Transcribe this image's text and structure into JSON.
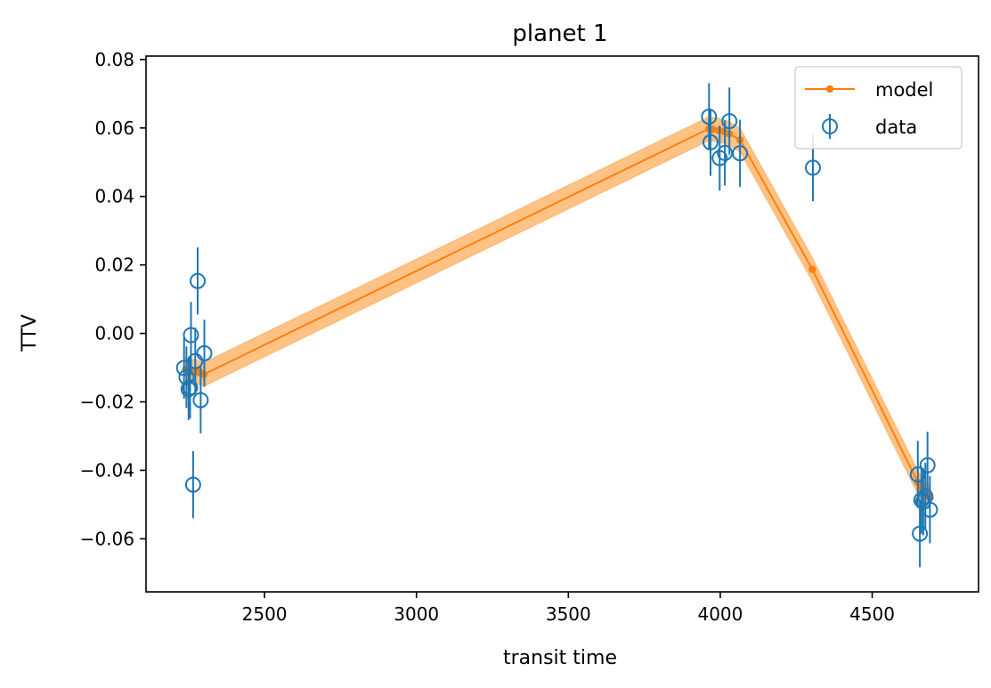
{
  "chart_data": {
    "type": "scatter",
    "title": "planet 1",
    "xlabel": "transit time",
    "ylabel": "TTV",
    "xlim": [
      2110,
      4850
    ],
    "ylim": [
      -0.0755,
      0.081
    ],
    "xticks": [
      2500,
      3000,
      3500,
      4000,
      4500
    ],
    "xtick_labels": [
      "2500",
      "3000",
      "3500",
      "4000",
      "4500"
    ],
    "yticks": [
      -0.06,
      -0.04,
      -0.02,
      0.0,
      0.02,
      0.04,
      0.06,
      0.08
    ],
    "ytick_labels": [
      "−0.06",
      "−0.04",
      "−0.02",
      "0.00",
      "0.02",
      "0.04",
      "0.06",
      "0.08"
    ],
    "grid": false,
    "legend_position": "top-right",
    "colors": {
      "model": "#ff7f0e",
      "data": "#1f77b4",
      "band": "#ffbb78"
    },
    "series": [
      {
        "name": "model",
        "kind": "line",
        "band_halfwidth": 0.0035,
        "x": [
          2240,
          2248,
          2255,
          2262,
          2270,
          2280,
          2290,
          2300,
          3963,
          3975,
          3995,
          4012,
          4030,
          4065,
          4303,
          4650,
          4660,
          4668,
          4675,
          4682,
          4690
        ],
        "y": [
          -0.0105,
          -0.011,
          -0.0108,
          -0.0112,
          -0.011,
          -0.0113,
          -0.0116,
          -0.012,
          0.0598,
          0.0596,
          0.0593,
          0.059,
          0.0583,
          0.0565,
          0.0187,
          -0.0435,
          -0.045,
          -0.0462,
          -0.0468,
          -0.0475,
          -0.048
        ]
      },
      {
        "name": "data",
        "kind": "errorbar",
        "points": [
          {
            "x": 2235,
            "y": -0.0101,
            "err": 0.009
          },
          {
            "x": 2243,
            "y": -0.0128,
            "err": 0.009
          },
          {
            "x": 2250,
            "y": -0.0163,
            "err": 0.009
          },
          {
            "x": 2255,
            "y": -0.0158,
            "err": 0.009
          },
          {
            "x": 2258,
            "y": -0.0005,
            "err": 0.0097
          },
          {
            "x": 2265,
            "y": -0.0442,
            "err": 0.0098
          },
          {
            "x": 2272,
            "y": -0.0081,
            "err": 0.0098
          },
          {
            "x": 2280,
            "y": 0.0153,
            "err": 0.0098
          },
          {
            "x": 2290,
            "y": -0.0195,
            "err": 0.0097
          },
          {
            "x": 2302,
            "y": -0.0058,
            "err": 0.0098
          },
          {
            "x": 3963,
            "y": 0.0633,
            "err": 0.0098
          },
          {
            "x": 3968,
            "y": 0.0558,
            "err": 0.0098
          },
          {
            "x": 3998,
            "y": 0.0512,
            "err": 0.0095
          },
          {
            "x": 4015,
            "y": 0.0527,
            "err": 0.0095
          },
          {
            "x": 4030,
            "y": 0.062,
            "err": 0.0098
          },
          {
            "x": 4065,
            "y": 0.0526,
            "err": 0.0098
          },
          {
            "x": 4305,
            "y": 0.0484,
            "err": 0.0098
          },
          {
            "x": 4650,
            "y": -0.0412,
            "err": 0.0098
          },
          {
            "x": 4657,
            "y": -0.0585,
            "err": 0.0098
          },
          {
            "x": 4662,
            "y": -0.0487,
            "err": 0.0098
          },
          {
            "x": 4668,
            "y": -0.0492,
            "err": 0.0098
          },
          {
            "x": 4675,
            "y": -0.0476,
            "err": 0.0098
          },
          {
            "x": 4682,
            "y": -0.0385,
            "err": 0.0098
          },
          {
            "x": 4690,
            "y": -0.0515,
            "err": 0.0098
          }
        ]
      }
    ]
  }
}
